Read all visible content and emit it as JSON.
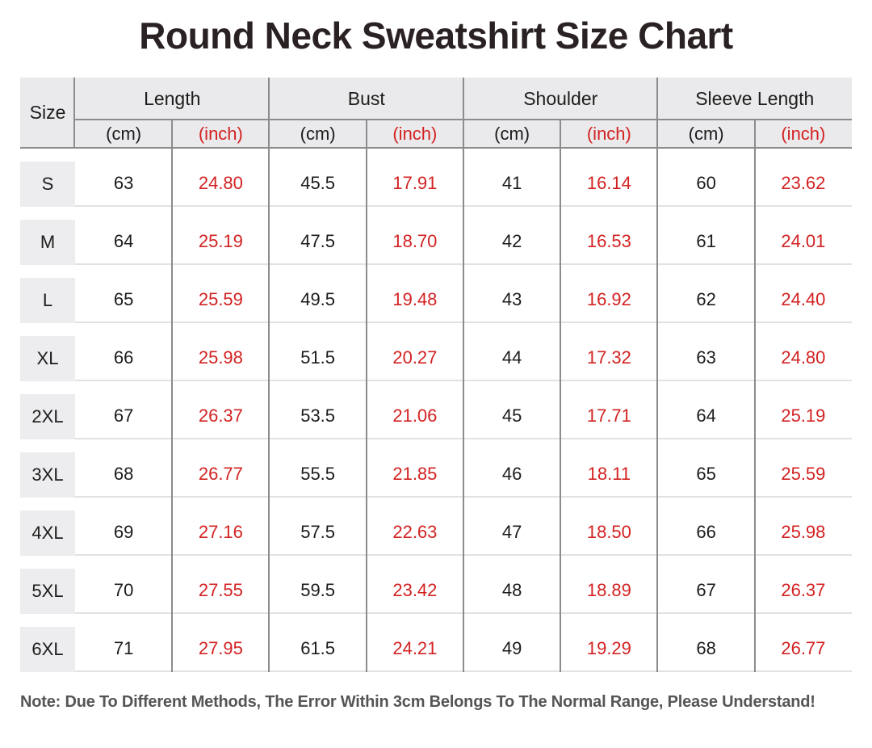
{
  "title": "Round Neck Sweatshirt Size Chart",
  "note": "Note: Due To Different Methods, The Error Within 3cm Belongs To The Normal Range, Please Understand!",
  "colors": {
    "accent_red": "#d32222",
    "header_bg": "#eaeaec",
    "size_cell_bg": "#ededef",
    "grid_line": "#8c8c8c",
    "row_divider": "#e2e2e2",
    "text_dark": "#1c1c1c",
    "note_gray": "#555555"
  },
  "chart_data": {
    "type": "table",
    "title": "Round Neck Sweatshirt Size Chart",
    "size_column_header": "Size",
    "column_groups": [
      {
        "label": "Length",
        "units": [
          "(cm)",
          "(inch)"
        ]
      },
      {
        "label": "Bust",
        "units": [
          "(cm)",
          "(inch)"
        ]
      },
      {
        "label": "Shoulder",
        "units": [
          "(cm)",
          "(inch)"
        ]
      },
      {
        "label": "Sleeve Length",
        "units": [
          "(cm)",
          "(inch)"
        ]
      }
    ],
    "rows": [
      {
        "size": "S",
        "values": [
          "63",
          "24.80",
          "45.5",
          "17.91",
          "41",
          "16.14",
          "60",
          "23.62"
        ]
      },
      {
        "size": "M",
        "values": [
          "64",
          "25.19",
          "47.5",
          "18.70",
          "42",
          "16.53",
          "61",
          "24.01"
        ]
      },
      {
        "size": "L",
        "values": [
          "65",
          "25.59",
          "49.5",
          "19.48",
          "43",
          "16.92",
          "62",
          "24.40"
        ]
      },
      {
        "size": "XL",
        "values": [
          "66",
          "25.98",
          "51.5",
          "20.27",
          "44",
          "17.32",
          "63",
          "24.80"
        ]
      },
      {
        "size": "2XL",
        "values": [
          "67",
          "26.37",
          "53.5",
          "21.06",
          "45",
          "17.71",
          "64",
          "25.19"
        ]
      },
      {
        "size": "3XL",
        "values": [
          "68",
          "26.77",
          "55.5",
          "21.85",
          "46",
          "18.11",
          "65",
          "25.59"
        ]
      },
      {
        "size": "4XL",
        "values": [
          "69",
          "27.16",
          "57.5",
          "22.63",
          "47",
          "18.50",
          "66",
          "25.98"
        ]
      },
      {
        "size": "5XL",
        "values": [
          "70",
          "27.55",
          "59.5",
          "23.42",
          "48",
          "18.89",
          "67",
          "26.37"
        ]
      },
      {
        "size": "6XL",
        "values": [
          "71",
          "27.95",
          "61.5",
          "24.21",
          "49",
          "19.29",
          "68",
          "26.77"
        ]
      }
    ]
  }
}
